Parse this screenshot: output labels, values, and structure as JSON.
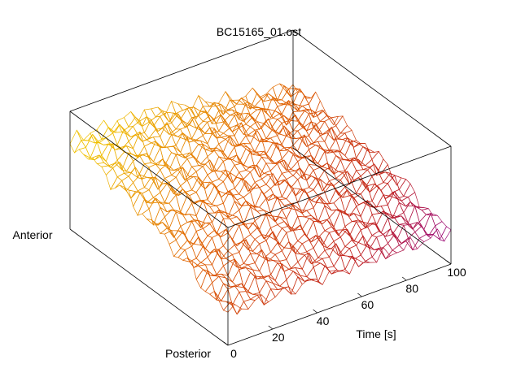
{
  "chart_data": {
    "type": "surface",
    "title": "BC15165_01.ost",
    "xlabel": "Time [s]",
    "x_ticks": [
      "0",
      "20",
      "40",
      "60",
      "80",
      "100"
    ],
    "xlim": [
      0,
      100
    ],
    "y_axis_ends": [
      "Posterior",
      "Anterior"
    ],
    "zlabel": "",
    "z_ticks": [],
    "grid": false,
    "box": true,
    "rows": 36,
    "cols": 34,
    "surface_z": [
      [
        0.42,
        0.39,
        0.44,
        0.41,
        0.46,
        0.43,
        0.48,
        0.45,
        0.5,
        0.47,
        0.52,
        0.49,
        0.54,
        0.51,
        0.56,
        0.53,
        0.58,
        0.55,
        0.6,
        0.57,
        0.62,
        0.59,
        0.63,
        0.6,
        0.64,
        0.61,
        0.64,
        0.61,
        0.63,
        0.6,
        0.62,
        0.58,
        0.6,
        0.56
      ],
      [
        0.95,
        0.91,
        0.96,
        0.92,
        0.97,
        0.93,
        0.98,
        0.94,
        0.98,
        0.95,
        0.99,
        0.95,
        0.99,
        0.96,
        1.0,
        0.96,
        1.0,
        0.97,
        1.0,
        0.97,
        1.0,
        0.97,
        1.0,
        0.96,
        0.99,
        0.95,
        0.97,
        0.93,
        0.95,
        0.9,
        0.92,
        0.87,
        0.88,
        0.83
      ]
    ],
    "colormap": [
      "#7a00e0",
      "#c02020",
      "#e06000",
      "#f0c000"
    ]
  }
}
